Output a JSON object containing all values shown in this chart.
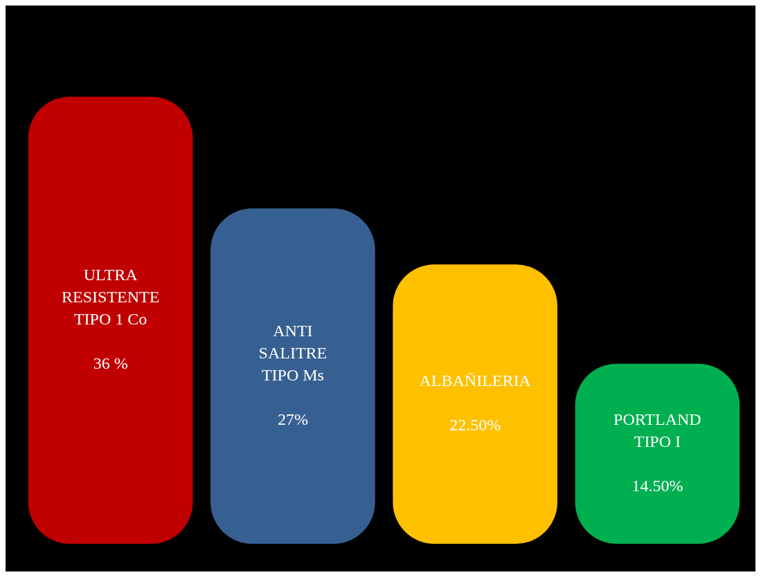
{
  "chart_data": {
    "type": "bar",
    "categories": [
      "ULTRA RESISTENTE TIPO 1 Co",
      "ANTI SALITRE TIPO Ms",
      "ALBAÑILERIA",
      "PORTLAND TIPO I"
    ],
    "values": [
      36,
      27,
      22.5,
      14.5
    ],
    "colors": [
      "#c00000",
      "#376092",
      "#ffc000",
      "#00b050"
    ],
    "value_labels": [
      "36 %",
      "27%",
      "22.50%",
      "14.50%"
    ],
    "legend": false
  }
}
